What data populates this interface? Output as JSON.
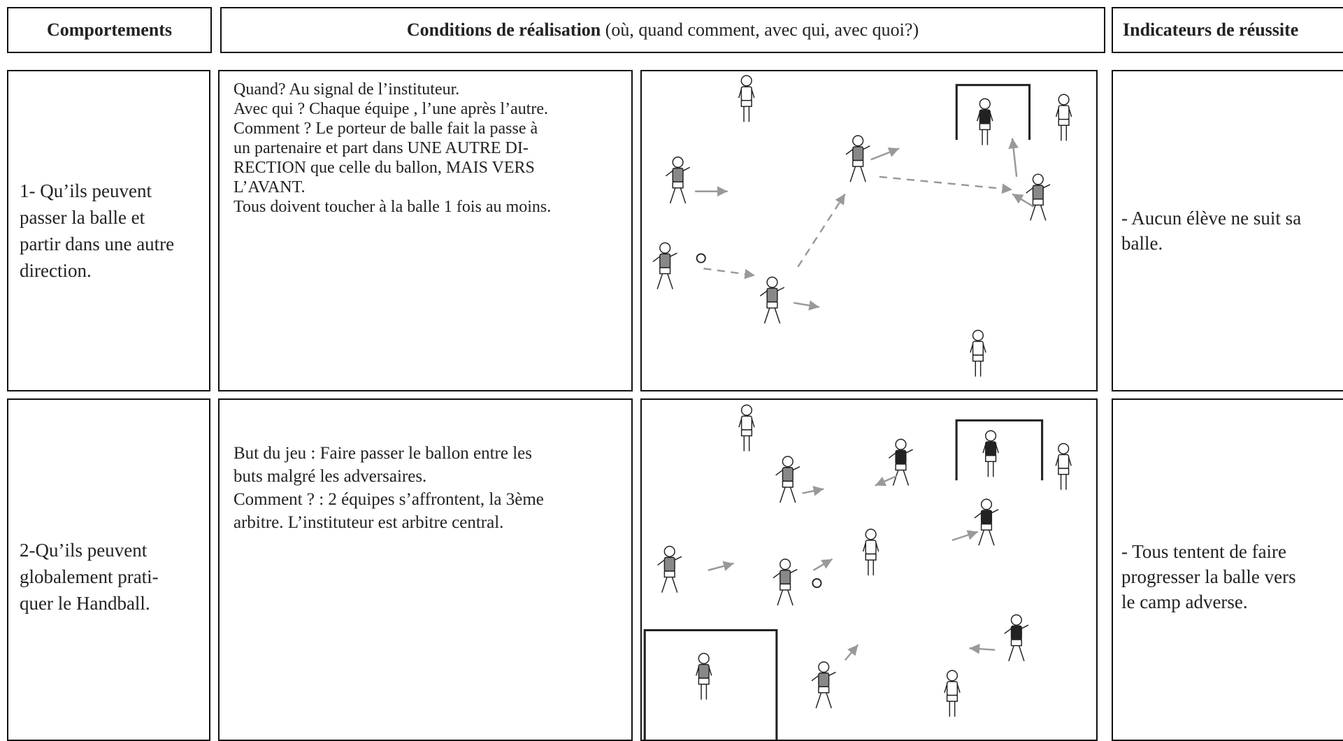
{
  "header": {
    "col1": "Comportements",
    "col2_bold": "Conditions de réalisation",
    "col2_rest": "(où, quand comment, avec qui, avec quoi?)",
    "col3": "Indicateurs de réussite"
  },
  "rows": [
    {
      "behavior": [
        "1- Qu’ils peuvent",
        "passer la balle et",
        "partir dans une autre",
        "direction."
      ],
      "conditions": [
        "Quand?  Au signal de l’instituteur.",
        "Avec qui ? Chaque équipe , l’une après l’autre.",
        "Comment ?  Le porteur de balle fait la passe à",
        "un partenaire et part dans UNE AUTRE DI-",
        "RECTION que celle du ballon, MAIS VERS",
        "L’AVANT.",
        "Tous doivent toucher à la balle 1 fois au moins."
      ],
      "indicator": [
        "- Aucun élève ne suit sa",
        "balle."
      ]
    },
    {
      "behavior": [
        "2-Qu’ils peuvent",
        "globalement prati-",
        "quer le Handball."
      ],
      "conditions": [
        "But du jeu : Faire passer le ballon entre les",
        "buts malgré les adversaires.",
        "Comment ? : 2 équipes s’affrontent, la 3ème",
        "arbitre. L’instituteur est arbitre central."
      ],
      "indicator": [
        "- Tous tentent de faire",
        "progresser la balle vers",
        "le camp adverse."
      ]
    }
  ]
}
